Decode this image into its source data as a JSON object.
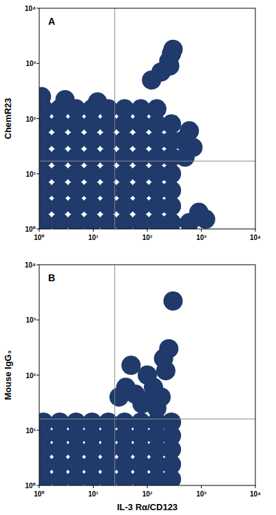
{
  "chart_data": [
    {
      "type": "scatter",
      "title": "A",
      "ylabel": "ChemR23",
      "log": true,
      "color": "#1f3a6b",
      "xlim": [
        1,
        10000
      ],
      "ylim": [
        1,
        10000
      ],
      "xticks": [
        {
          "value": 1,
          "label": "10⁰"
        },
        {
          "value": 10,
          "label": "10¹"
        },
        {
          "value": 100,
          "label": "10²"
        },
        {
          "value": 1000,
          "label": "10³"
        },
        {
          "value": 10000,
          "label": "10⁴"
        }
      ],
      "yticks": [
        {
          "value": 1,
          "label": "10⁰"
        },
        {
          "value": 10,
          "label": "10¹"
        },
        {
          "value": 100,
          "label": "10²"
        },
        {
          "value": 1000,
          "label": "10³"
        },
        {
          "value": 10000,
          "label": "10⁴"
        }
      ],
      "gates": {
        "x": 25,
        "y": 17
      },
      "x": [
        1.2,
        2.4,
        4.8,
        9.5,
        19,
        38,
        76,
        150,
        1.2,
        2.4,
        4.8,
        9.5,
        19,
        38,
        76,
        150,
        280,
        1.2,
        2.4,
        4.8,
        9.5,
        19,
        38,
        76,
        150,
        280,
        450,
        1.2,
        2.4,
        4.8,
        9.5,
        19,
        38,
        76,
        150,
        280,
        500,
        1.2,
        2.4,
        4.8,
        9.5,
        19,
        38,
        76,
        150,
        280,
        1.2,
        2.4,
        4.8,
        9.5,
        19,
        38,
        76,
        150,
        280,
        1.2,
        2.4,
        4.8,
        9.5,
        19,
        38,
        76,
        150,
        280,
        1.2,
        2.4,
        4.8,
        9.5,
        19,
        38,
        76,
        150,
        280,
        600,
        1.1,
        3,
        12,
        600,
        700,
        900,
        1200,
        250,
        280,
        300,
        260,
        180,
        120
      ],
      "values": [
        150,
        150,
        150,
        150,
        150,
        150,
        150,
        150,
        80,
        80,
        80,
        80,
        80,
        80,
        80,
        80,
        80,
        40,
        40,
        40,
        40,
        40,
        40,
        40,
        40,
        40,
        40,
        20,
        20,
        20,
        20,
        20,
        20,
        20,
        20,
        20,
        20,
        10,
        10,
        10,
        10,
        10,
        10,
        10,
        10,
        10,
        5,
        5,
        5,
        5,
        5,
        5,
        5,
        5,
        5,
        2.6,
        2.6,
        2.6,
        2.6,
        2.6,
        2.6,
        2.6,
        2.6,
        2.6,
        1.3,
        1.3,
        1.3,
        1.3,
        1.3,
        1.3,
        1.3,
        1.3,
        1.3,
        1.3,
        250,
        220,
        200,
        60,
        30,
        2,
        1.5,
        1100,
        1500,
        1800,
        900,
        700,
        500
      ]
    },
    {
      "type": "scatter",
      "title": "B",
      "ylabel": "Mouse IgG₃",
      "xlabel": "IL-3 Rα/CD123",
      "log": true,
      "color": "#1f3a6b",
      "xlim": [
        1,
        10000
      ],
      "ylim": [
        1,
        10000
      ],
      "xticks": [
        {
          "value": 1,
          "label": "10⁰"
        },
        {
          "value": 10,
          "label": "10¹"
        },
        {
          "value": 100,
          "label": "10²"
        },
        {
          "value": 1000,
          "label": "10³"
        },
        {
          "value": 10000,
          "label": "10⁴"
        }
      ],
      "yticks": [
        {
          "value": 1,
          "label": "10⁰"
        },
        {
          "value": 10,
          "label": "10¹"
        },
        {
          "value": 100,
          "label": "10²"
        },
        {
          "value": 1000,
          "label": "10³"
        },
        {
          "value": 10000,
          "label": "10⁴"
        }
      ],
      "gates": {
        "x": 25,
        "y": 16
      },
      "x": [
        1.2,
        2.4,
        4.8,
        9.5,
        19,
        38,
        76,
        150,
        280,
        1.2,
        2.4,
        4.8,
        9.5,
        19,
        38,
        76,
        150,
        280,
        1.2,
        2.4,
        4.8,
        9.5,
        19,
        38,
        76,
        150,
        280,
        1.2,
        2.4,
        4.8,
        9.5,
        19,
        38,
        76,
        150,
        280,
        1.2,
        2.4,
        4.8,
        9.5,
        19,
        38,
        76,
        150,
        280,
        40,
        60,
        80,
        100,
        130,
        150,
        200,
        220,
        250,
        300,
        30,
        50,
        110,
        180
      ],
      "values": [
        14,
        14,
        14,
        14,
        14,
        14,
        14,
        14,
        14,
        8,
        8,
        8,
        8,
        8,
        8,
        8,
        8,
        8,
        4.5,
        4.5,
        4.5,
        4.5,
        4.5,
        4.5,
        4.5,
        4.5,
        4.5,
        2.4,
        2.4,
        2.4,
        2.4,
        2.4,
        2.4,
        2.4,
        2.4,
        2.4,
        1.3,
        1.3,
        1.3,
        1.3,
        1.3,
        1.3,
        1.3,
        1.3,
        1.3,
        60,
        45,
        30,
        100,
        60,
        25,
        200,
        120,
        300,
        2200,
        40,
        150,
        35,
        40
      ]
    }
  ]
}
